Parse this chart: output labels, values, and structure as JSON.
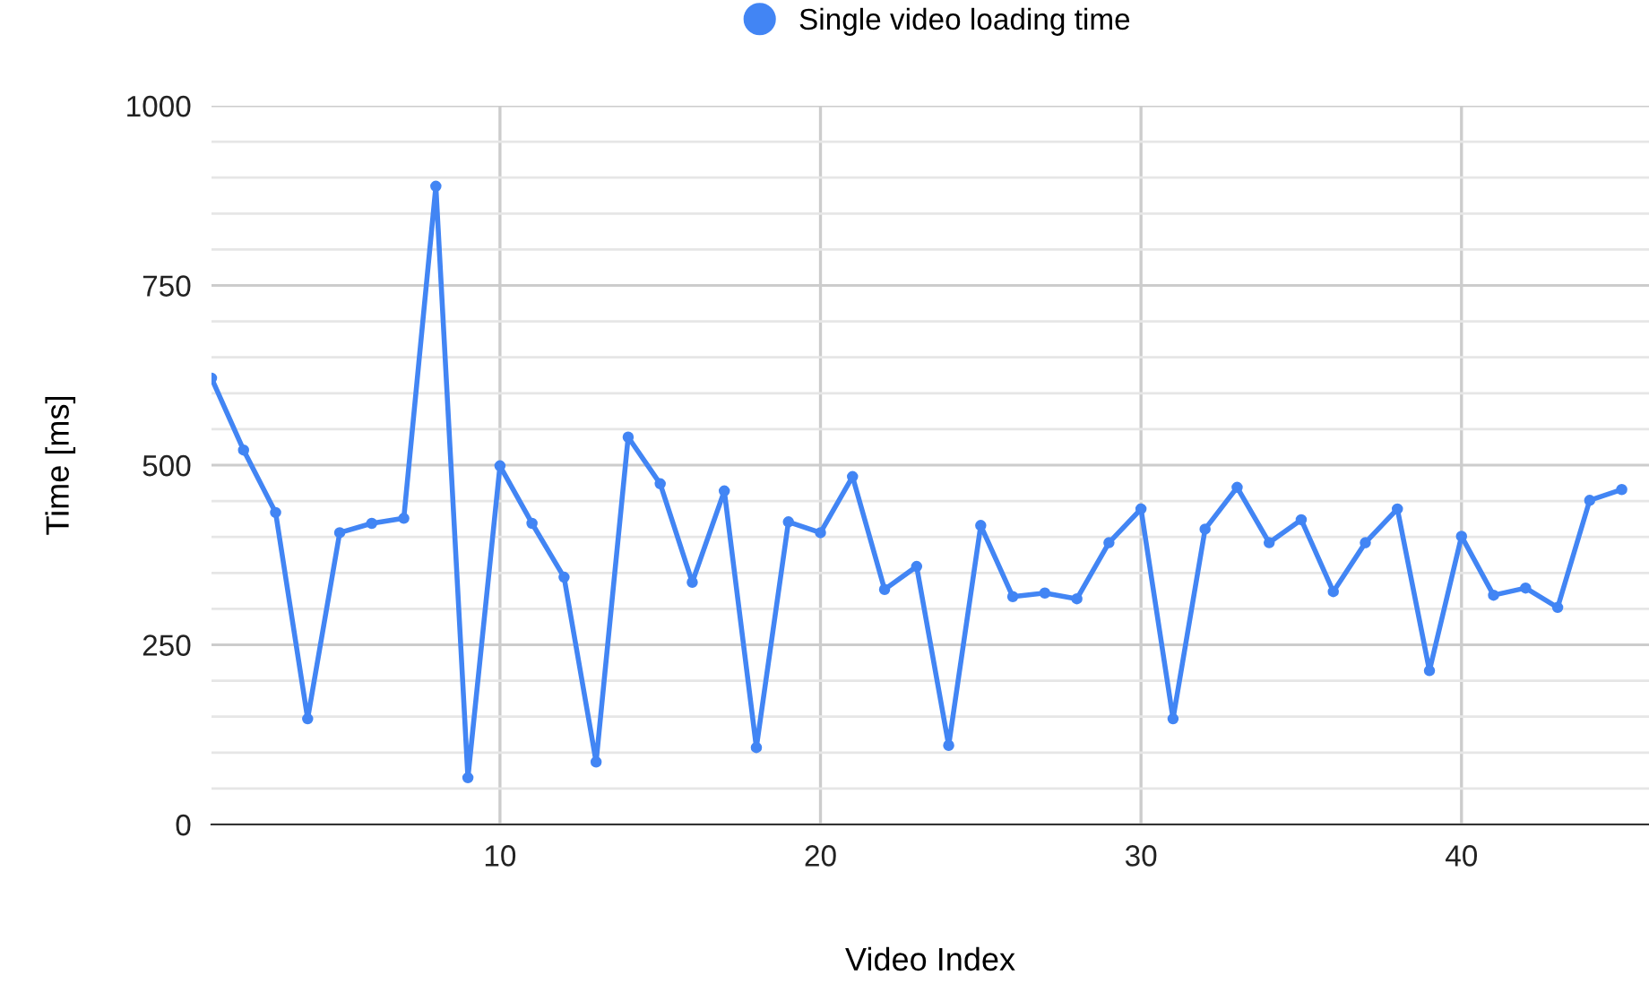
{
  "chart_data": {
    "type": "line",
    "xlabel": "Video Index",
    "ylabel": "Time [ms]",
    "x": [
      1,
      2,
      3,
      4,
      5,
      6,
      7,
      8,
      9,
      10,
      11,
      12,
      13,
      14,
      15,
      16,
      17,
      18,
      19,
      20,
      21,
      22,
      23,
      24,
      25,
      26,
      27,
      28,
      29,
      30,
      31,
      32,
      33,
      34,
      35,
      36,
      37,
      38,
      39,
      40,
      41,
      42,
      43,
      44,
      45
    ],
    "series": [
      {
        "name": "Single video loading time",
        "color": "#4285f4",
        "values": [
          621,
          521,
          434,
          147,
          406,
          419,
          426,
          888,
          65,
          499,
          419,
          344,
          87,
          539,
          474,
          337,
          464,
          107,
          421,
          406,
          484,
          327,
          359,
          110,
          416,
          317,
          322,
          314,
          392,
          439,
          147,
          411,
          469,
          392,
          424,
          324,
          392,
          439,
          214,
          401,
          319,
          329,
          302,
          451,
          466
        ]
      }
    ],
    "xlim": [
      1,
      45.85
    ],
    "xticks": [
      10,
      20,
      30,
      40
    ],
    "ylim": [
      0,
      1000
    ],
    "yticks": [
      0,
      {
        "value": 50,
        "label": null
      },
      {
        "value": 100,
        "label": null
      },
      {
        "value": 150,
        "label": null
      },
      {
        "value": 200,
        "label": null
      },
      250,
      {
        "value": 300,
        "label": null
      },
      {
        "value": 350,
        "label": null
      },
      {
        "value": 400,
        "label": null
      },
      {
        "value": 450,
        "label": null
      },
      500,
      {
        "value": 550,
        "label": null
      },
      {
        "value": 600,
        "label": null
      },
      {
        "value": 650,
        "label": null
      },
      {
        "value": 700,
        "label": null
      },
      750,
      {
        "value": 800,
        "label": null
      },
      {
        "value": 850,
        "label": null
      },
      {
        "value": 900,
        "label": null
      },
      {
        "value": 950,
        "label": null
      },
      1000
    ],
    "grid": true,
    "legend": "top",
    "marker": "circle",
    "line_style": "solid"
  }
}
